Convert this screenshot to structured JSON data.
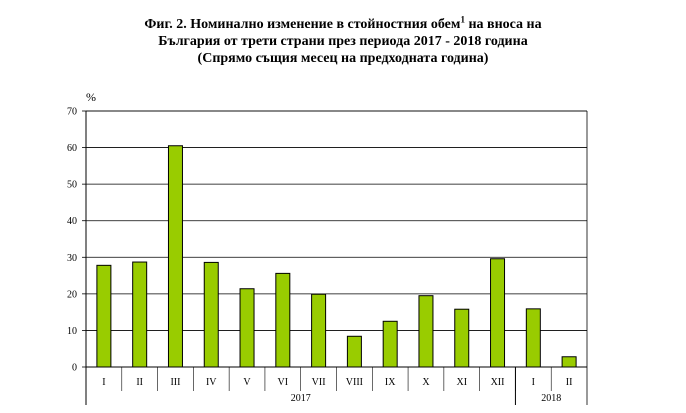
{
  "title": {
    "line1_pre": "Фиг. 2. Номинално изменение в стойностния обем",
    "line1_sup": "1",
    "line1_post": " на вноса на",
    "line2": "България от трети страни през периода 2017 - 2018 година",
    "line3": "(Спрямо същия месец на предходната година)"
  },
  "chart_data": {
    "type": "bar",
    "ylabel": "%",
    "ylim": [
      0,
      70
    ],
    "yticks": [
      0,
      10,
      20,
      30,
      40,
      50,
      60,
      70
    ],
    "grid": true,
    "categories": [
      "I",
      "II",
      "III",
      "IV",
      "V",
      "VI",
      "VII",
      "VIII",
      "IX",
      "X",
      "XI",
      "XII",
      "I",
      "II"
    ],
    "values": [
      27.8,
      28.7,
      60.5,
      28.6,
      21.4,
      25.6,
      19.9,
      8.4,
      12.5,
      19.5,
      15.8,
      29.6,
      15.9,
      2.8
    ],
    "year_groups": [
      {
        "label": "2017",
        "count": 12
      },
      {
        "label": "2018",
        "count": 2
      }
    ],
    "colors": {
      "bar_fill": "#99cc00",
      "bar_stroke": "#000000",
      "grid": "#000000"
    }
  }
}
